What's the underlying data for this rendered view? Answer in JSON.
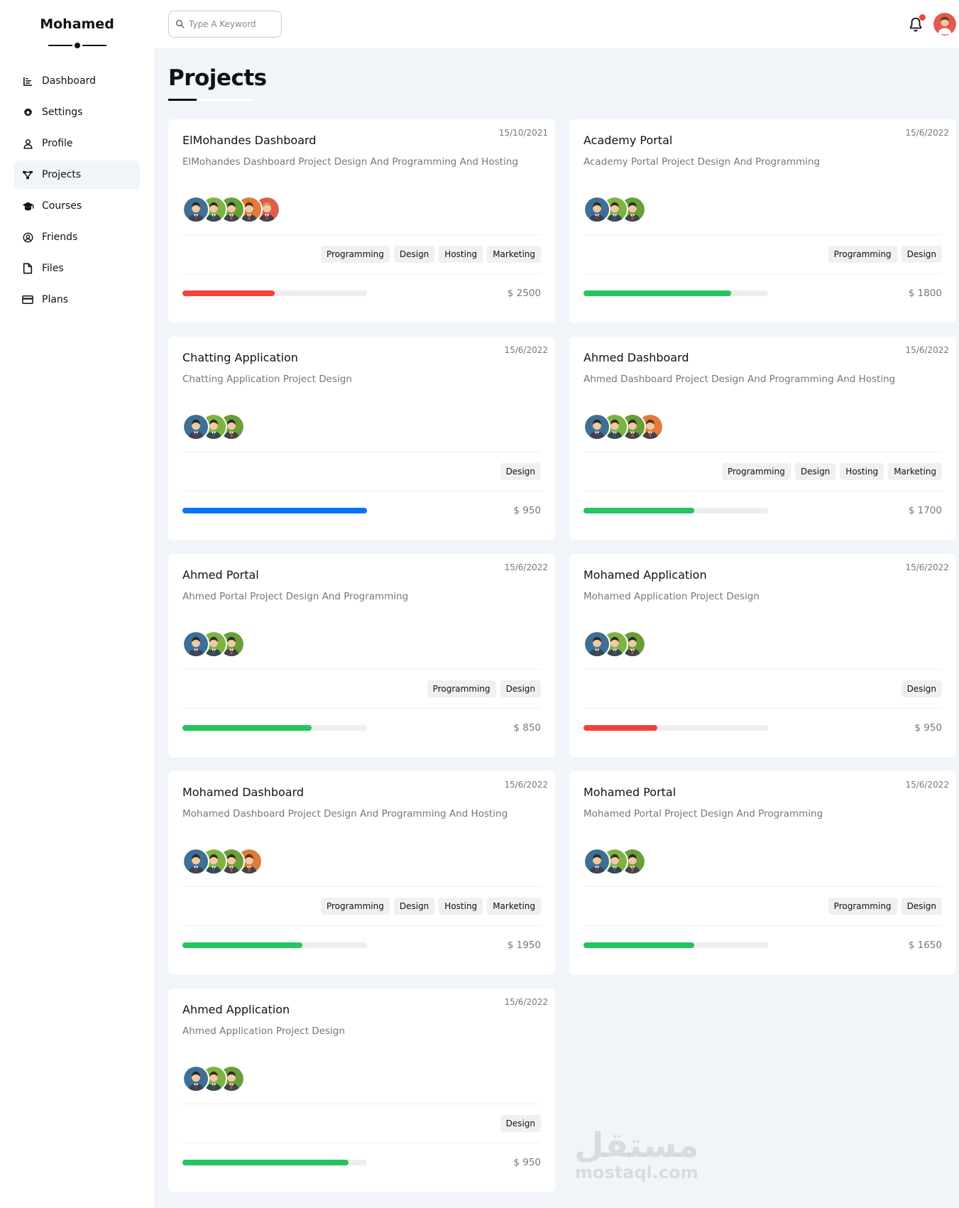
{
  "sidebar": {
    "brand": "Mohamed",
    "items": [
      {
        "label": "Dashboard",
        "icon": "chart-icon",
        "active": false
      },
      {
        "label": "Settings",
        "icon": "gear-icon",
        "active": false
      },
      {
        "label": "Profile",
        "icon": "user-icon",
        "active": false
      },
      {
        "label": "Projects",
        "icon": "diagram-icon",
        "active": true
      },
      {
        "label": "Courses",
        "icon": "graduation-cap-icon",
        "active": false
      },
      {
        "label": "Friends",
        "icon": "user-circle-icon",
        "active": false
      },
      {
        "label": "Files",
        "icon": "file-icon",
        "active": false
      },
      {
        "label": "Plans",
        "icon": "credit-card-icon",
        "active": false
      }
    ]
  },
  "header": {
    "search_placeholder": "Type A Keyword",
    "notification_icon": "bell-icon",
    "has_notification": true
  },
  "page": {
    "title": "Projects"
  },
  "colors": {
    "red": "#f44336",
    "green": "#22c55e",
    "blue": "#0075ff",
    "bg": "#f1f5f9"
  },
  "projects": [
    {
      "date": "15/10/2021",
      "title": "ElMohandes Dashboard",
      "description": "ElMohandes Dashboard Project Design And Programming And Hosting",
      "avatars": 5,
      "tags": [
        "Programming",
        "Design",
        "Hosting",
        "Marketing"
      ],
      "progress": 0.5,
      "progress_color": "red",
      "price": "$ 2500"
    },
    {
      "date": "15/6/2022",
      "title": "Academy Portal",
      "description": "Academy Portal Project Design And Programming",
      "avatars": 3,
      "tags": [
        "Programming",
        "Design"
      ],
      "progress": 0.8,
      "progress_color": "green",
      "price": "$ 1800"
    },
    {
      "date": "15/6/2022",
      "title": "Chatting Application",
      "description": "Chatting Application Project Design",
      "avatars": 3,
      "tags": [
        "Design"
      ],
      "progress": 1.0,
      "progress_color": "blue",
      "price": "$ 950"
    },
    {
      "date": "15/6/2022",
      "title": "Ahmed Dashboard",
      "description": "Ahmed Dashboard Project Design And Programming And Hosting",
      "avatars": 4,
      "tags": [
        "Programming",
        "Design",
        "Hosting",
        "Marketing"
      ],
      "progress": 0.6,
      "progress_color": "green",
      "price": "$ 1700"
    },
    {
      "date": "15/6/2022",
      "title": "Ahmed Portal",
      "description": "Ahmed Portal Project Design And Programming",
      "avatars": 3,
      "tags": [
        "Programming",
        "Design"
      ],
      "progress": 0.7,
      "progress_color": "green",
      "price": "$ 850"
    },
    {
      "date": "15/6/2022",
      "title": "Mohamed Application",
      "description": "Mohamed Application Project Design",
      "avatars": 3,
      "tags": [
        "Design"
      ],
      "progress": 0.4,
      "progress_color": "red",
      "price": "$ 950"
    },
    {
      "date": "15/6/2022",
      "title": "Mohamed Dashboard",
      "description": "Mohamed Dashboard Project Design And Programming And Hosting",
      "avatars": 4,
      "tags": [
        "Programming",
        "Design",
        "Hosting",
        "Marketing"
      ],
      "progress": 0.65,
      "progress_color": "green",
      "price": "$ 1950"
    },
    {
      "date": "15/6/2022",
      "title": "Mohamed Portal",
      "description": "Mohamed Portal Project Design And Programming",
      "avatars": 3,
      "tags": [
        "Programming",
        "Design"
      ],
      "progress": 0.6,
      "progress_color": "green",
      "price": "$ 1650"
    },
    {
      "date": "15/6/2022",
      "title": "Ahmed Application",
      "description": "Ahmed Application Project Design",
      "avatars": 3,
      "tags": [
        "Design"
      ],
      "progress": 0.9,
      "progress_color": "green",
      "price": "$ 950"
    }
  ],
  "watermark": {
    "arabic": "مستقل",
    "latin": "mostaql.com"
  }
}
